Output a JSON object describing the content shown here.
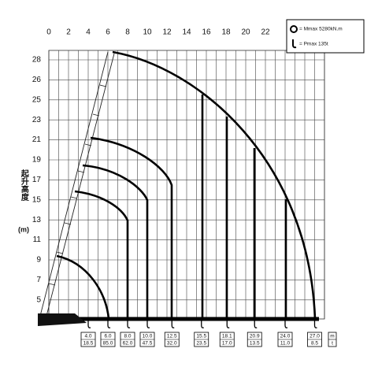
{
  "x_labels": [
    "0",
    "2",
    "4",
    "6",
    "8",
    "10",
    "12",
    "14",
    "16",
    "18",
    "20",
    "22"
  ],
  "y_labels": [
    "28",
    "26",
    "25",
    "23",
    "21",
    "19",
    "17",
    "15",
    "13",
    "11",
    "9",
    "7",
    "5"
  ],
  "y_title": "起升高度",
  "y_unit": "(m)",
  "legend": [
    "= Mmax 5280kN.m",
    "= Pmax 135t"
  ],
  "table": {
    "columns": [
      {
        "radius": "4.0",
        "load": "18.5"
      },
      {
        "radius": "6.0",
        "load": "85.0"
      },
      {
        "radius": "8.0",
        "load": "62.0"
      },
      {
        "radius": "10.0",
        "load": "47.5"
      },
      {
        "radius": "12.5",
        "load": "32.0"
      },
      {
        "radius": "15.5",
        "load": "23.5"
      },
      {
        "radius": "18.1",
        "load": "17.0"
      },
      {
        "radius": "20.9",
        "load": "13.5"
      },
      {
        "radius": "24.0",
        "load": "11.0"
      },
      {
        "radius": "27.0",
        "load": "8.5"
      }
    ],
    "units": [
      "m",
      "t"
    ]
  }
}
